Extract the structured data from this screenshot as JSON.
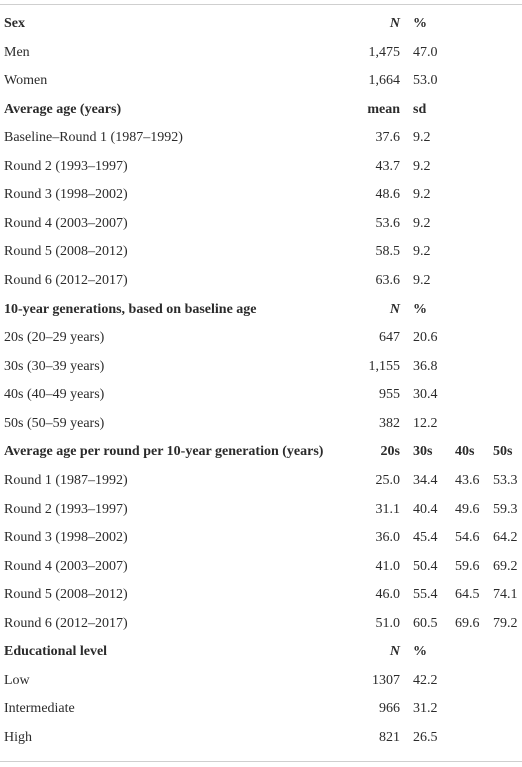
{
  "table": {
    "sections": [
      {
        "header": [
          "Sex",
          "N",
          "%"
        ],
        "rows": [
          [
            "Men",
            "1,475",
            "47.0"
          ],
          [
            "Women",
            "1,664",
            "53.0"
          ]
        ]
      },
      {
        "header": [
          "Average age (years)",
          "mean",
          "sd"
        ],
        "rows": [
          [
            "Baseline–Round 1 (1987–1992)",
            "37.6",
            "9.2"
          ],
          [
            "Round 2 (1993–1997)",
            "43.7",
            "9.2"
          ],
          [
            "Round 3 (1998–2002)",
            "48.6",
            "9.2"
          ],
          [
            "Round 4 (2003–2007)",
            "53.6",
            "9.2"
          ],
          [
            "Round 5 (2008–2012)",
            "58.5",
            "9.2"
          ],
          [
            "Round 6 (2012–2017)",
            "63.6",
            "9.2"
          ]
        ]
      },
      {
        "header": [
          "10-year generations, based on baseline age",
          "N",
          "%"
        ],
        "rows": [
          [
            "20s (20–29 years)",
            "647",
            "20.6"
          ],
          [
            "30s (30–39 years)",
            "1,155",
            "36.8"
          ],
          [
            "40s (40–49 years)",
            "955",
            "30.4"
          ],
          [
            "50s (50–59 years)",
            "382",
            "12.2"
          ]
        ]
      },
      {
        "header": [
          "Average age per round per 10-year generation (years)",
          "20s",
          "30s",
          "40s",
          "50s"
        ],
        "rows": [
          [
            "Round 1 (1987–1992)",
            "25.0",
            "34.4",
            "43.6",
            "53.3"
          ],
          [
            "Round 2 (1993–1997)",
            "31.1",
            "40.4",
            "49.6",
            "59.3"
          ],
          [
            "Round 3 (1998–2002)",
            "36.0",
            "45.4",
            "54.6",
            "64.2"
          ],
          [
            "Round 4 (2003–2007)",
            "41.0",
            "50.4",
            "59.6",
            "69.2"
          ],
          [
            "Round 5 (2008–2012)",
            "46.0",
            "55.4",
            "64.5",
            "74.1"
          ],
          [
            "Round 6 (2012–2017)",
            "51.0",
            "60.5",
            "69.6",
            "79.2"
          ]
        ]
      },
      {
        "header": [
          "Educational level",
          "N",
          "%"
        ],
        "rows": [
          [
            "Low",
            "1307",
            "42.2"
          ],
          [
            "Intermediate",
            "966",
            "31.2"
          ],
          [
            "High",
            "821",
            "26.5"
          ]
        ]
      }
    ]
  }
}
